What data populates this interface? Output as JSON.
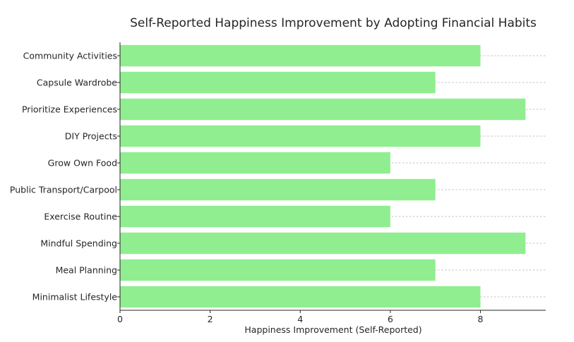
{
  "chart_data": {
    "type": "bar",
    "orientation": "horizontal",
    "title": "Self-Reported Happiness Improvement by Adopting Financial Habits",
    "xlabel": "Happiness Improvement (Self-Reported)",
    "ylabel": "",
    "categories": [
      "Minimalist Lifestyle",
      "Meal Planning",
      "Mindful Spending",
      "Exercise Routine",
      "Public Transport/Carpool",
      "Grow Own Food",
      "DIY Projects",
      "Prioritize Experiences",
      "Capsule Wardrobe",
      "Community Activities"
    ],
    "values": [
      8,
      7,
      9,
      6,
      7,
      6,
      8,
      9,
      7,
      8
    ],
    "xlim": [
      0,
      9.45
    ],
    "x_ticks": [
      0,
      2,
      4,
      6,
      8
    ],
    "x_tick_labels": [
      "0",
      "2",
      "4",
      "6",
      "8"
    ],
    "grid": "horizontal dashed",
    "bar_color": "#90ee90",
    "text_color": "#262626",
    "grid_color": "#b0b0b0"
  }
}
